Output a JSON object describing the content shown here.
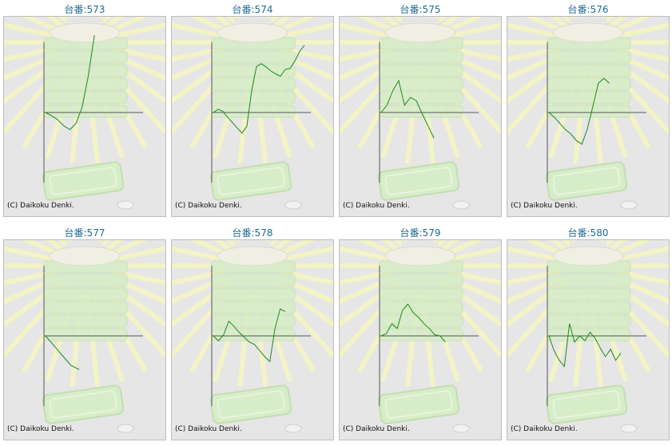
{
  "copyright": "(C) Daikoku Denki.",
  "machines": [
    {
      "label": "台番:573",
      "values": [
        0,
        -8,
        -18,
        -33,
        -42,
        -26,
        14,
        90,
        190
      ]
    },
    {
      "label": "台番:574",
      "values": [
        0,
        8,
        3,
        -12,
        -25,
        -38,
        -51,
        -33,
        54,
        113,
        120,
        112,
        102,
        95,
        89,
        106,
        108,
        126,
        150,
        165
      ]
    },
    {
      "label": "台番:575",
      "values": [
        0,
        18,
        54,
        78,
        18,
        37,
        29,
        -3,
        -33,
        -63
      ]
    },
    {
      "label": "台番:576",
      "values": [
        0,
        -12,
        -27,
        -42,
        -53,
        -69,
        -78,
        -40,
        15,
        72,
        84,
        72
      ]
    },
    {
      "label": "台番:577",
      "values": [
        0,
        -24,
        -48,
        -72,
        -83
      ]
    },
    {
      "label": "台番:578",
      "values": [
        0,
        -12,
        3,
        36,
        24,
        9,
        -3,
        -15,
        -21,
        -36,
        -51,
        -63,
        18,
        66,
        60
      ]
    },
    {
      "label": "台番:579",
      "values": [
        0,
        6,
        30,
        18,
        63,
        78,
        57,
        45,
        30,
        18,
        3,
        0,
        -15
      ]
    },
    {
      "label": "台番:580",
      "values": [
        0,
        -36,
        -60,
        -75,
        30,
        -15,
        0,
        -12,
        9,
        -6,
        -30,
        -51,
        -33,
        -60,
        -42
      ]
    }
  ]
}
